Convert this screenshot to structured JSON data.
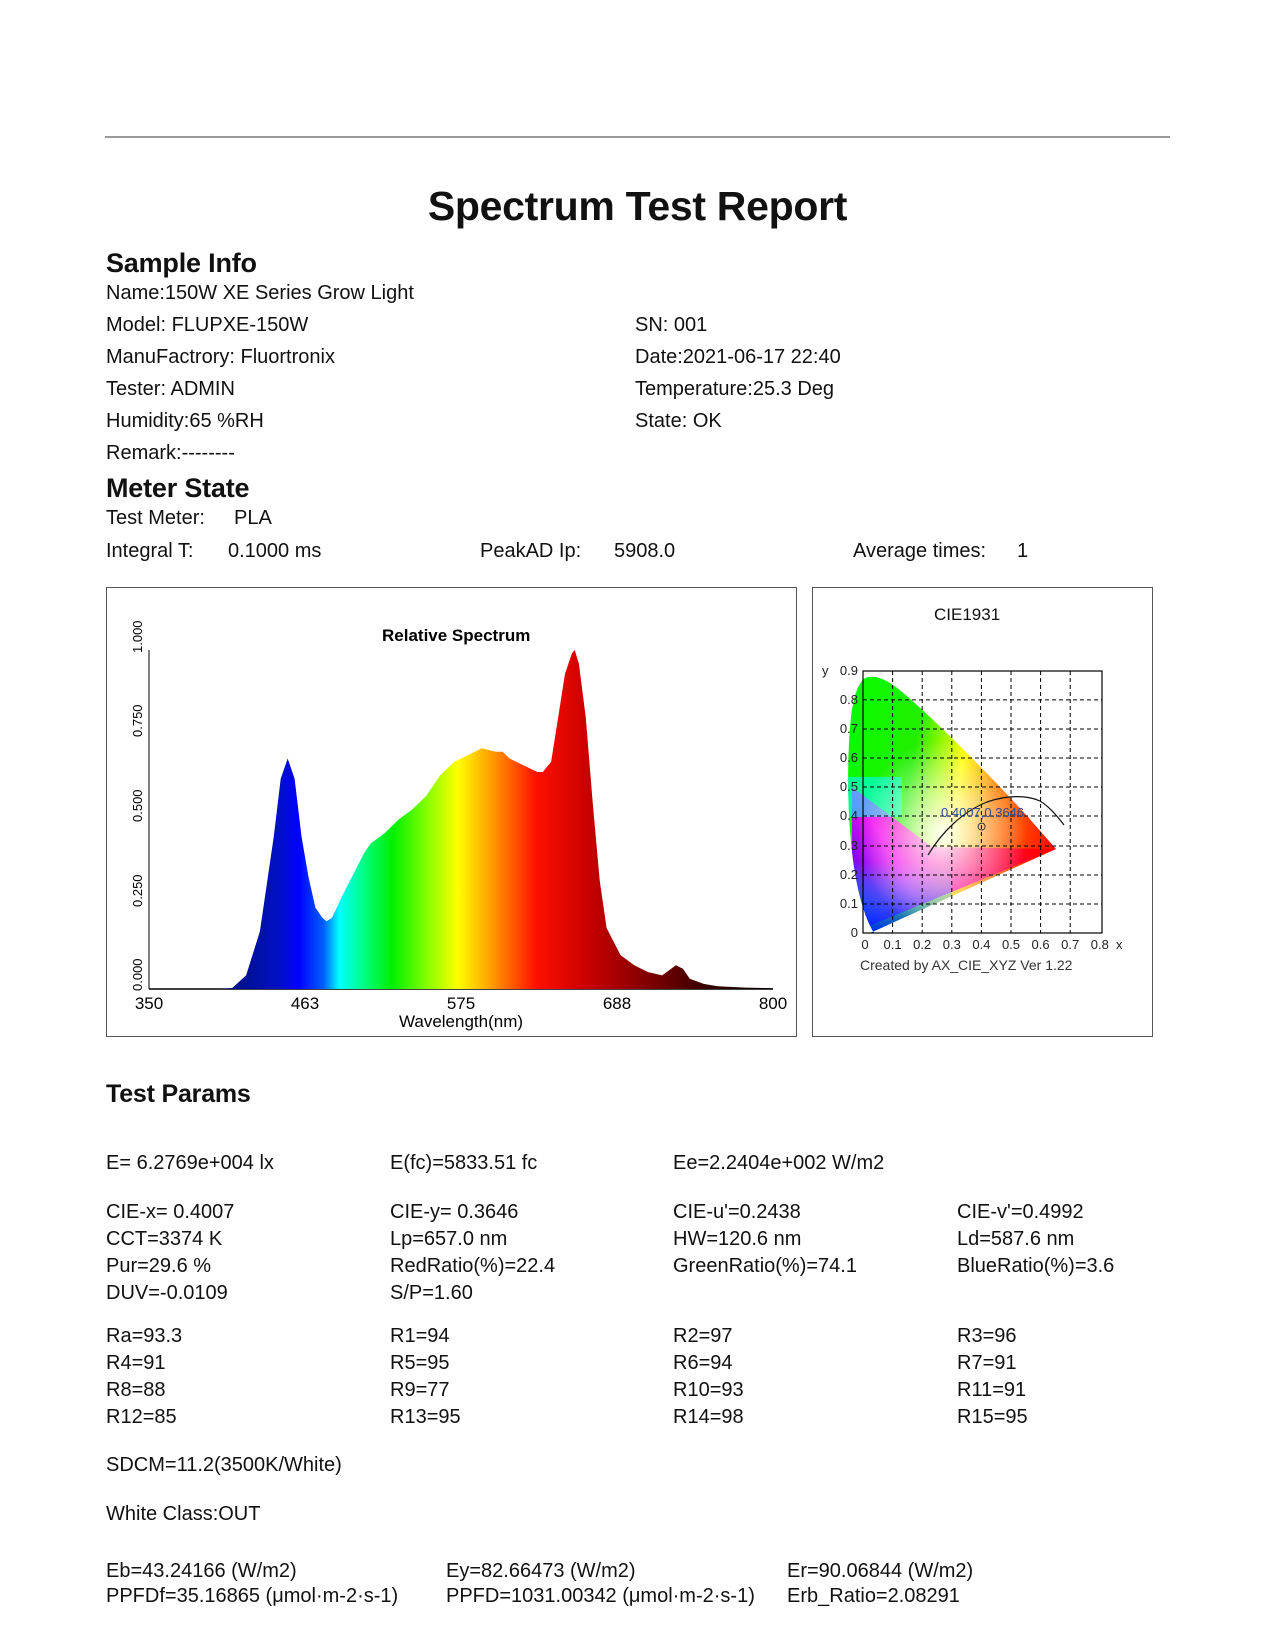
{
  "report": {
    "title": "Spectrum Test Report"
  },
  "sample_info": {
    "heading": "Sample Info",
    "name": "Name:150W XE Series Grow Light",
    "model": "Model: FLUPXE-150W",
    "sn": "SN: 001",
    "manufactory": "ManuFactrory: Fluortronix",
    "date": "Date:2021-06-17 22:40",
    "tester": "Tester: ADMIN",
    "temperature": "Temperature:25.3 Deg",
    "humidity": "Humidity:65 %RH",
    "state": "State: OK",
    "remark": "Remark:--------"
  },
  "meter_state": {
    "heading": "Meter State",
    "test_meter_label": "Test Meter:",
    "test_meter_value": "PLA",
    "integral_label": "Integral T:",
    "integral_value": "0.1000 ms",
    "peakad_label": "PeakAD Ip:",
    "peakad_value": "5908.0",
    "avg_label": "Average times:",
    "avg_value": "1"
  },
  "chart_data": [
    {
      "type": "area",
      "title": "Relative Spectrum",
      "xlabel": "Wavelength(nm)",
      "ylabel": "",
      "xlim": [
        350,
        800
      ],
      "ylim": [
        0,
        1
      ],
      "x_ticks": [
        "350",
        "463",
        "575",
        "688",
        "800"
      ],
      "y_ticks": [
        "0.000",
        "0.250",
        "0.500",
        "0.750",
        "1.000"
      ],
      "grid": false,
      "fill": "wavelength-colored gradient",
      "x": [
        350,
        400,
        410,
        420,
        430,
        440,
        445,
        450,
        455,
        460,
        465,
        470,
        475,
        478,
        482,
        490,
        500,
        505,
        510,
        520,
        530,
        540,
        550,
        560,
        570,
        580,
        590,
        600,
        605,
        610,
        620,
        630,
        634,
        640,
        645,
        650,
        655,
        657,
        660,
        665,
        670,
        675,
        680,
        690,
        700,
        710,
        720,
        730,
        735,
        740,
        750,
        760,
        780,
        800
      ],
      "values": [
        0.0,
        0.0,
        0.003,
        0.04,
        0.17,
        0.45,
        0.62,
        0.68,
        0.62,
        0.45,
        0.33,
        0.24,
        0.21,
        0.2,
        0.21,
        0.28,
        0.36,
        0.4,
        0.43,
        0.46,
        0.5,
        0.53,
        0.57,
        0.63,
        0.67,
        0.69,
        0.71,
        0.7,
        0.7,
        0.68,
        0.66,
        0.64,
        0.64,
        0.67,
        0.8,
        0.93,
        0.99,
        1.0,
        0.96,
        0.8,
        0.55,
        0.32,
        0.18,
        0.1,
        0.07,
        0.05,
        0.04,
        0.07,
        0.06,
        0.03,
        0.015,
        0.008,
        0.004,
        0.002
      ]
    },
    {
      "type": "scatter",
      "title": "CIE1931",
      "xlabel": "x",
      "ylabel": "y",
      "xlim": [
        0,
        0.8
      ],
      "ylim": [
        0,
        0.9
      ],
      "x_ticks": [
        "0",
        "0.1",
        "0.2",
        "0.3",
        "0.4",
        "0.5",
        "0.6",
        "0.7",
        "0.8"
      ],
      "y_ticks": [
        "0",
        "0.1",
        "0.2",
        "0.3",
        "0.4",
        "0.5",
        "0.6",
        "0.7",
        "0.8",
        "0.9"
      ],
      "grid": true,
      "point": {
        "x": 0.4007,
        "y": 0.3646
      },
      "point_label": "0.4007,0.3646",
      "footer": "Created by AX_CIE_XYZ Ver 1.22",
      "planckian_locus": true
    }
  ],
  "test_params": {
    "heading": "Test Params",
    "row1": [
      "E=  6.2769e+004 lx",
      "E(fc)=5833.51 fc",
      "Ee=2.2404e+002 W/m2"
    ],
    "block2": [
      [
        "CIE-x= 0.4007",
        "CIE-y= 0.3646",
        "CIE-u'=0.2438",
        "CIE-v'=0.4992"
      ],
      [
        "CCT=3374 K",
        "Lp=657.0 nm",
        "HW=120.6 nm",
        "Ld=587.6 nm"
      ],
      [
        "Pur=29.6 %",
        "RedRatio(%)=22.4",
        "GreenRatio(%)=74.1",
        "BlueRatio(%)=3.6"
      ],
      [
        "DUV=-0.0109",
        "S/P=1.60",
        "",
        ""
      ]
    ],
    "cri": [
      [
        "Ra=93.3",
        "R1=94",
        "R2=97",
        "R3=96"
      ],
      [
        "R4=91",
        "R5=95",
        "R6=94",
        "R7=91"
      ],
      [
        "R8=88",
        "R9=77",
        "R10=93",
        "R11=91"
      ],
      [
        "R12=85",
        "R13=95",
        "R14=98",
        "R15=95"
      ]
    ],
    "sdcm": "SDCM=11.2(3500K/White)",
    "white_class": "White Class:OUT",
    "irradiance": [
      [
        "Eb=43.24166 (W/m2)",
        "Ey=82.66473 (W/m2)",
        "Er=90.06844 (W/m2)"
      ],
      [
        "PPFDf=35.16865 (μmol·m-2·s-1)",
        "PPFD=1031.00342 (μmol·m-2·s-1)",
        "Erb_Ratio=2.08291"
      ]
    ]
  }
}
